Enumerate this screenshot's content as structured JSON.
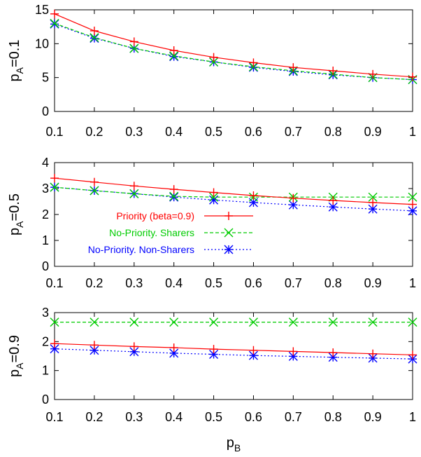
{
  "chart_data": [
    {
      "type": "line",
      "ylabel": "p_A=0.1",
      "ylabel_main": "p",
      "ylabel_sub": "A",
      "ylabel_rest": "=0.1",
      "xlabel": "",
      "xlim": [
        0.1,
        1
      ],
      "ylim": [
        0,
        15
      ],
      "yticks": [
        "0",
        "5",
        "10",
        "15"
      ],
      "xticks": [
        "0.1",
        "0.2",
        "0.3",
        "0.4",
        "0.5",
        "0.6",
        "0.7",
        "0.8",
        "0.9",
        "1"
      ],
      "x": [
        0.1,
        0.2,
        0.3,
        0.4,
        0.5,
        0.6,
        0.7,
        0.8,
        0.9,
        1.0
      ],
      "series": [
        {
          "name": "Priority (beta=0.9)",
          "color": "#ff0000",
          "marker": "plus",
          "dash": "solid",
          "values": [
            14.4,
            11.9,
            10.3,
            9.0,
            8.0,
            7.2,
            6.5,
            6.0,
            5.5,
            5.1
          ]
        },
        {
          "name": "No-Priority. Sharers",
          "color": "#00cc00",
          "marker": "x",
          "dash": "dashed",
          "values": [
            13.0,
            10.9,
            9.3,
            8.2,
            7.3,
            6.6,
            6.0,
            5.5,
            5.0,
            4.7
          ]
        },
        {
          "name": "No-Priority. Non-Sharers",
          "color": "#0000ff",
          "marker": "star",
          "dash": "dotted",
          "values": [
            12.9,
            10.8,
            9.3,
            8.1,
            7.3,
            6.5,
            5.9,
            5.4,
            5.0,
            4.7
          ]
        }
      ]
    },
    {
      "type": "line",
      "ylabel": "p_A=0.5",
      "ylabel_main": "p",
      "ylabel_sub": "A",
      "ylabel_rest": "=0.5",
      "xlabel": "",
      "xlim": [
        0.1,
        1
      ],
      "ylim": [
        0,
        4
      ],
      "yticks": [
        "0",
        "1",
        "2",
        "3",
        "4"
      ],
      "xticks": [
        "0.1",
        "0.2",
        "0.3",
        "0.4",
        "0.5",
        "0.6",
        "0.7",
        "0.8",
        "0.9",
        "1"
      ],
      "x": [
        0.1,
        0.2,
        0.3,
        0.4,
        0.5,
        0.6,
        0.7,
        0.8,
        0.9,
        1.0
      ],
      "series": [
        {
          "name": "Priority (beta=0.9)",
          "color": "#ff0000",
          "marker": "plus",
          "dash": "solid",
          "values": [
            3.4,
            3.25,
            3.1,
            2.97,
            2.85,
            2.73,
            2.63,
            2.54,
            2.46,
            2.39
          ]
        },
        {
          "name": "No-Priority. Sharers",
          "color": "#00cc00",
          "marker": "x",
          "dash": "dashed",
          "values": [
            3.05,
            2.92,
            2.8,
            2.7,
            2.67,
            2.67,
            2.67,
            2.67,
            2.67,
            2.67
          ]
        },
        {
          "name": "No-Priority. Non-Sharers",
          "color": "#0000ff",
          "marker": "star",
          "dash": "dotted",
          "values": [
            3.05,
            2.92,
            2.8,
            2.67,
            2.56,
            2.46,
            2.37,
            2.29,
            2.21,
            2.14
          ]
        }
      ],
      "legend": {
        "placement": "center-left",
        "entries": [
          "Priority (beta=0.9)",
          "No-Priority. Sharers",
          "No-Priority. Non-Sharers"
        ]
      }
    },
    {
      "type": "line",
      "ylabel": "p_A=0.9",
      "ylabel_main": "p",
      "ylabel_sub": "A",
      "ylabel_rest": "=0.9",
      "xlabel": "p_B",
      "xlabel_main": "p",
      "xlabel_sub": "B",
      "xlim": [
        0.1,
        1
      ],
      "ylim": [
        0,
        3
      ],
      "yticks": [
        "0",
        "1",
        "2",
        "3"
      ],
      "xticks": [
        "0.1",
        "0.2",
        "0.3",
        "0.4",
        "0.5",
        "0.6",
        "0.7",
        "0.8",
        "0.9",
        "1"
      ],
      "x": [
        0.1,
        0.2,
        0.3,
        0.4,
        0.5,
        0.6,
        0.7,
        0.8,
        0.9,
        1.0
      ],
      "series": [
        {
          "name": "Priority (beta=0.9)",
          "color": "#ff0000",
          "marker": "plus",
          "dash": "solid",
          "values": [
            1.93,
            1.88,
            1.83,
            1.79,
            1.74,
            1.7,
            1.66,
            1.62,
            1.58,
            1.54
          ]
        },
        {
          "name": "No-Priority. Sharers",
          "color": "#00cc00",
          "marker": "x",
          "dash": "dashed",
          "values": [
            2.67,
            2.67,
            2.67,
            2.67,
            2.67,
            2.67,
            2.67,
            2.67,
            2.67,
            2.67
          ]
        },
        {
          "name": "No-Priority. Non-Sharers",
          "color": "#0000ff",
          "marker": "star",
          "dash": "dotted",
          "values": [
            1.75,
            1.7,
            1.65,
            1.6,
            1.56,
            1.52,
            1.49,
            1.46,
            1.43,
            1.4
          ]
        }
      ]
    }
  ]
}
